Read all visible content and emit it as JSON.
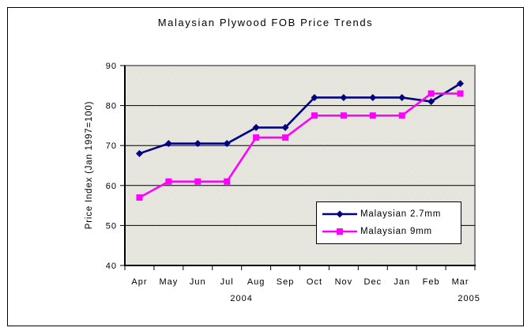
{
  "chart_data": {
    "type": "line",
    "title": "Malaysian Plywood FOB Price Trends",
    "xlabel": "",
    "ylabel": "Price Index (Jan 1997=100)",
    "categories": [
      "Apr",
      "May",
      "Jun",
      "Jul",
      "Aug",
      "Sep",
      "Oct",
      "Nov",
      "Dec",
      "Jan",
      "Feb",
      "Mar"
    ],
    "year_labels": [
      {
        "text": "2004",
        "index": 3.5
      },
      {
        "text": "2005",
        "index": 11.3
      }
    ],
    "series": [
      {
        "name": "Malaysian 2.7mm",
        "color": "#000080",
        "marker": "diamond",
        "values": [
          68,
          70.5,
          70.5,
          70.5,
          74.5,
          74.5,
          82,
          82,
          82,
          82,
          81,
          85.5
        ]
      },
      {
        "name": "Malaysian 9mm",
        "color": "#FF00FF",
        "marker": "square",
        "values": [
          57,
          61,
          61,
          61,
          72,
          72,
          77.5,
          77.5,
          77.5,
          77.5,
          83,
          83
        ]
      }
    ],
    "ylim": [
      40,
      90
    ],
    "y_ticks": [
      40,
      50,
      60,
      70,
      80,
      90
    ],
    "grid": true,
    "legend_position": "inside-bottom-right"
  },
  "colors": {
    "plot_bg_light": "#f0efe8",
    "plot_bg_dot": "#dbdad3",
    "plot_border": "#848284",
    "gridline": "#000000",
    "axis": "#000000",
    "legend_bg": "#ffffff",
    "legend_border": "#000000",
    "frame_border": "#000000",
    "page_bg": "#ffffff"
  }
}
